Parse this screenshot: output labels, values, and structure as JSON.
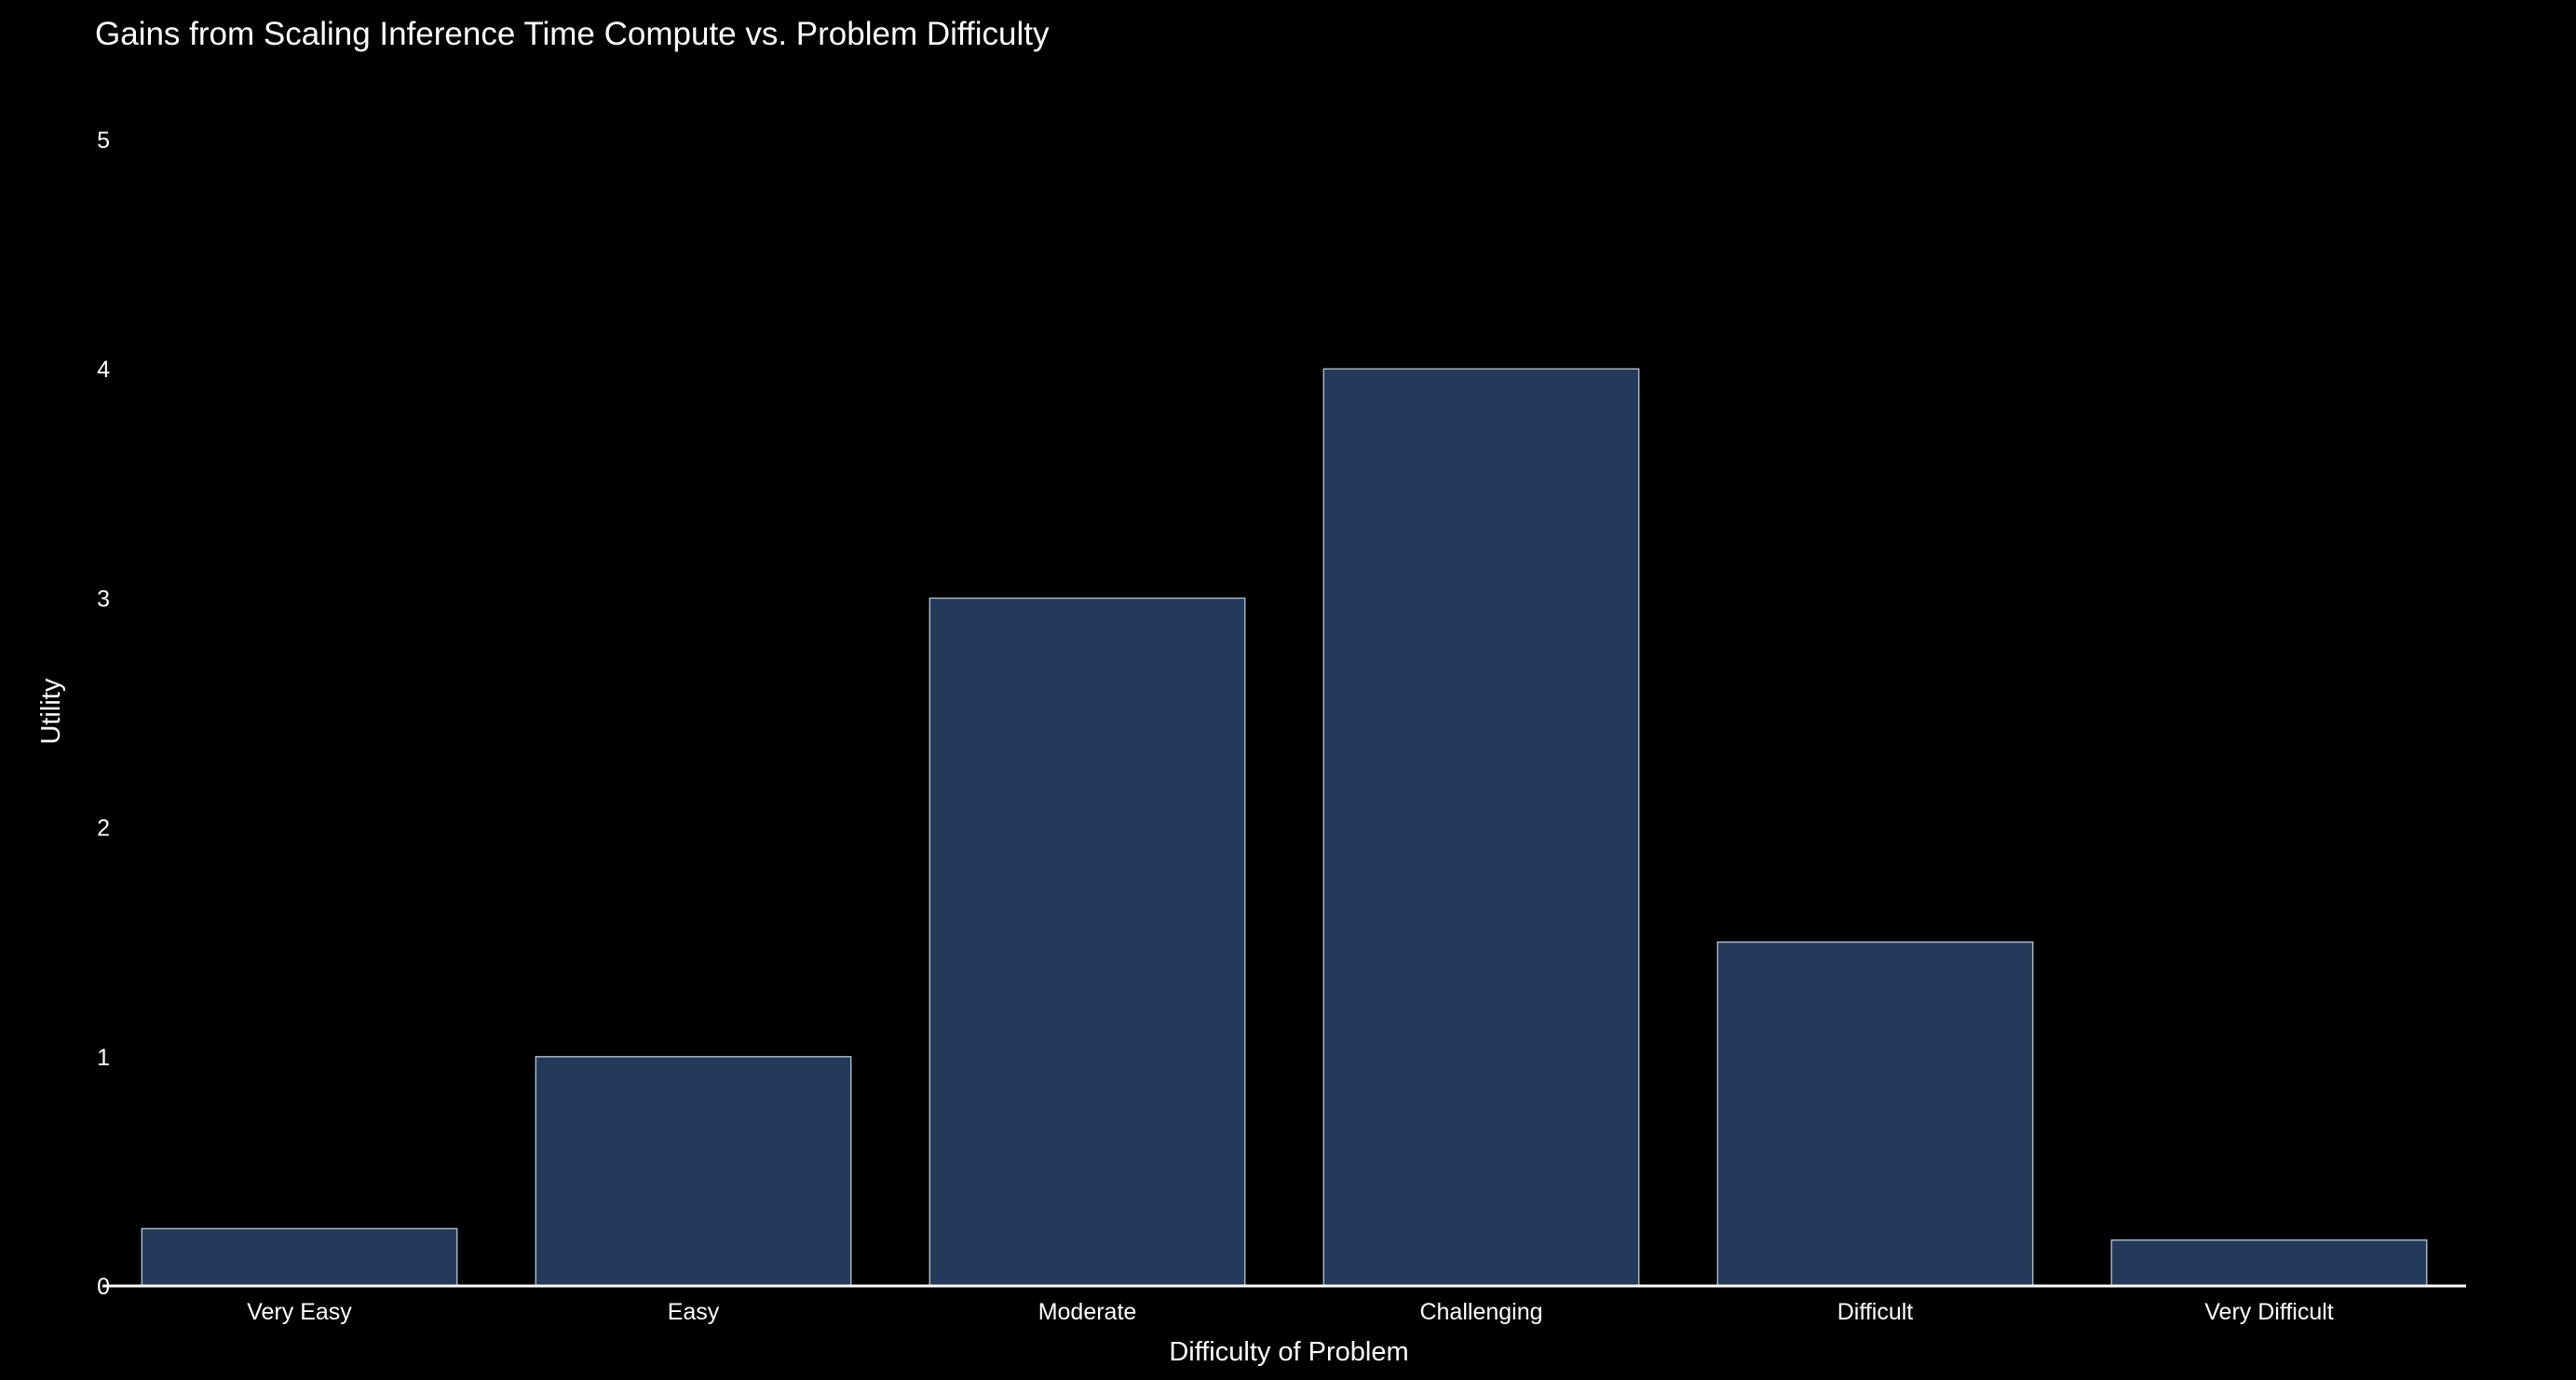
{
  "colors": {
    "background": "#000000",
    "bar_fill": "#233a5a",
    "bar_stroke": "#a9b3c2",
    "text": "#ffffff",
    "axis_line": "#ffffff"
  },
  "chart_data": {
    "type": "bar",
    "title": "Gains from Scaling Inference Time Compute vs. Problem Difficulty",
    "xlabel": "Difficulty of Problem",
    "ylabel": "Utility",
    "categories": [
      "Very Easy",
      "Easy",
      "Moderate",
      "Challenging",
      "Difficult",
      "Very Difficult"
    ],
    "values": [
      0.25,
      1,
      3,
      4,
      1.5,
      0.2
    ],
    "ylim": [
      0,
      5
    ],
    "yticks": [
      "0",
      "1",
      "2",
      "3",
      "4",
      "5"
    ],
    "grid": false,
    "legend": "none"
  }
}
